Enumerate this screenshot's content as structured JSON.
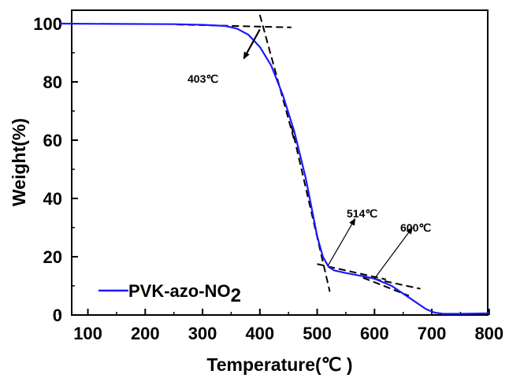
{
  "chart_data": {
    "type": "line",
    "xlabel": "Temperature(℃ )",
    "ylabel": "Weight(%)",
    "xlim": [
      50,
      800
    ],
    "ylim": [
      0,
      105
    ],
    "x_ticks": [
      100,
      200,
      300,
      400,
      500,
      600,
      700,
      800
    ],
    "y_ticks": [
      0,
      20,
      40,
      60,
      80,
      100
    ],
    "grid": false,
    "legend_position": "bottom-left",
    "series": [
      {
        "name": "PVK-azo-NO",
        "name_subscript": "2",
        "color": "#1a1aff",
        "x": [
          50,
          150,
          250,
          300,
          340,
          360,
          380,
          400,
          420,
          440,
          460,
          480,
          490,
          500,
          510,
          520,
          530,
          550,
          580,
          600,
          630,
          660,
          690,
          705,
          720,
          750,
          780,
          800
        ],
        "y": [
          100,
          99.9,
          99.8,
          99.6,
          99.2,
          98.3,
          96.2,
          92,
          85.5,
          75.5,
          63,
          47,
          37,
          27,
          20,
          16.5,
          15.3,
          14.4,
          13.3,
          12.5,
          10,
          6,
          2,
          0.8,
          0.4,
          0.4,
          0.5,
          0.6
        ]
      }
    ],
    "tangent_lines": [
      {
        "x": [
          255,
          455
        ],
        "y": [
          99.7,
          98.7
        ]
      },
      {
        "x": [
          400,
          460
        ],
        "y": [
          103,
          60
        ]
      },
      {
        "x": [
          455,
          522
        ],
        "y": [
          65,
          8
        ]
      },
      {
        "x": [
          500,
          620
        ],
        "y": [
          17.5,
          12.2
        ]
      },
      {
        "x": [
          580,
          660
        ],
        "y": [
          12.8,
          6.6
        ]
      },
      {
        "x": [
          580,
          680
        ],
        "y": [
          13.2,
          9
        ]
      }
    ],
    "annotations": [
      {
        "text": "403℃",
        "arrow_from": [
          400,
          98
        ],
        "arrow_to": [
          372,
          88
        ]
      },
      {
        "text": "514℃",
        "arrow_from": [
          519,
          17
        ],
        "arrow_to": [
          566,
          33
        ]
      },
      {
        "text": "600℃",
        "arrow_from": [
          600,
          12.5
        ],
        "arrow_to": [
          666,
          30
        ]
      }
    ]
  }
}
